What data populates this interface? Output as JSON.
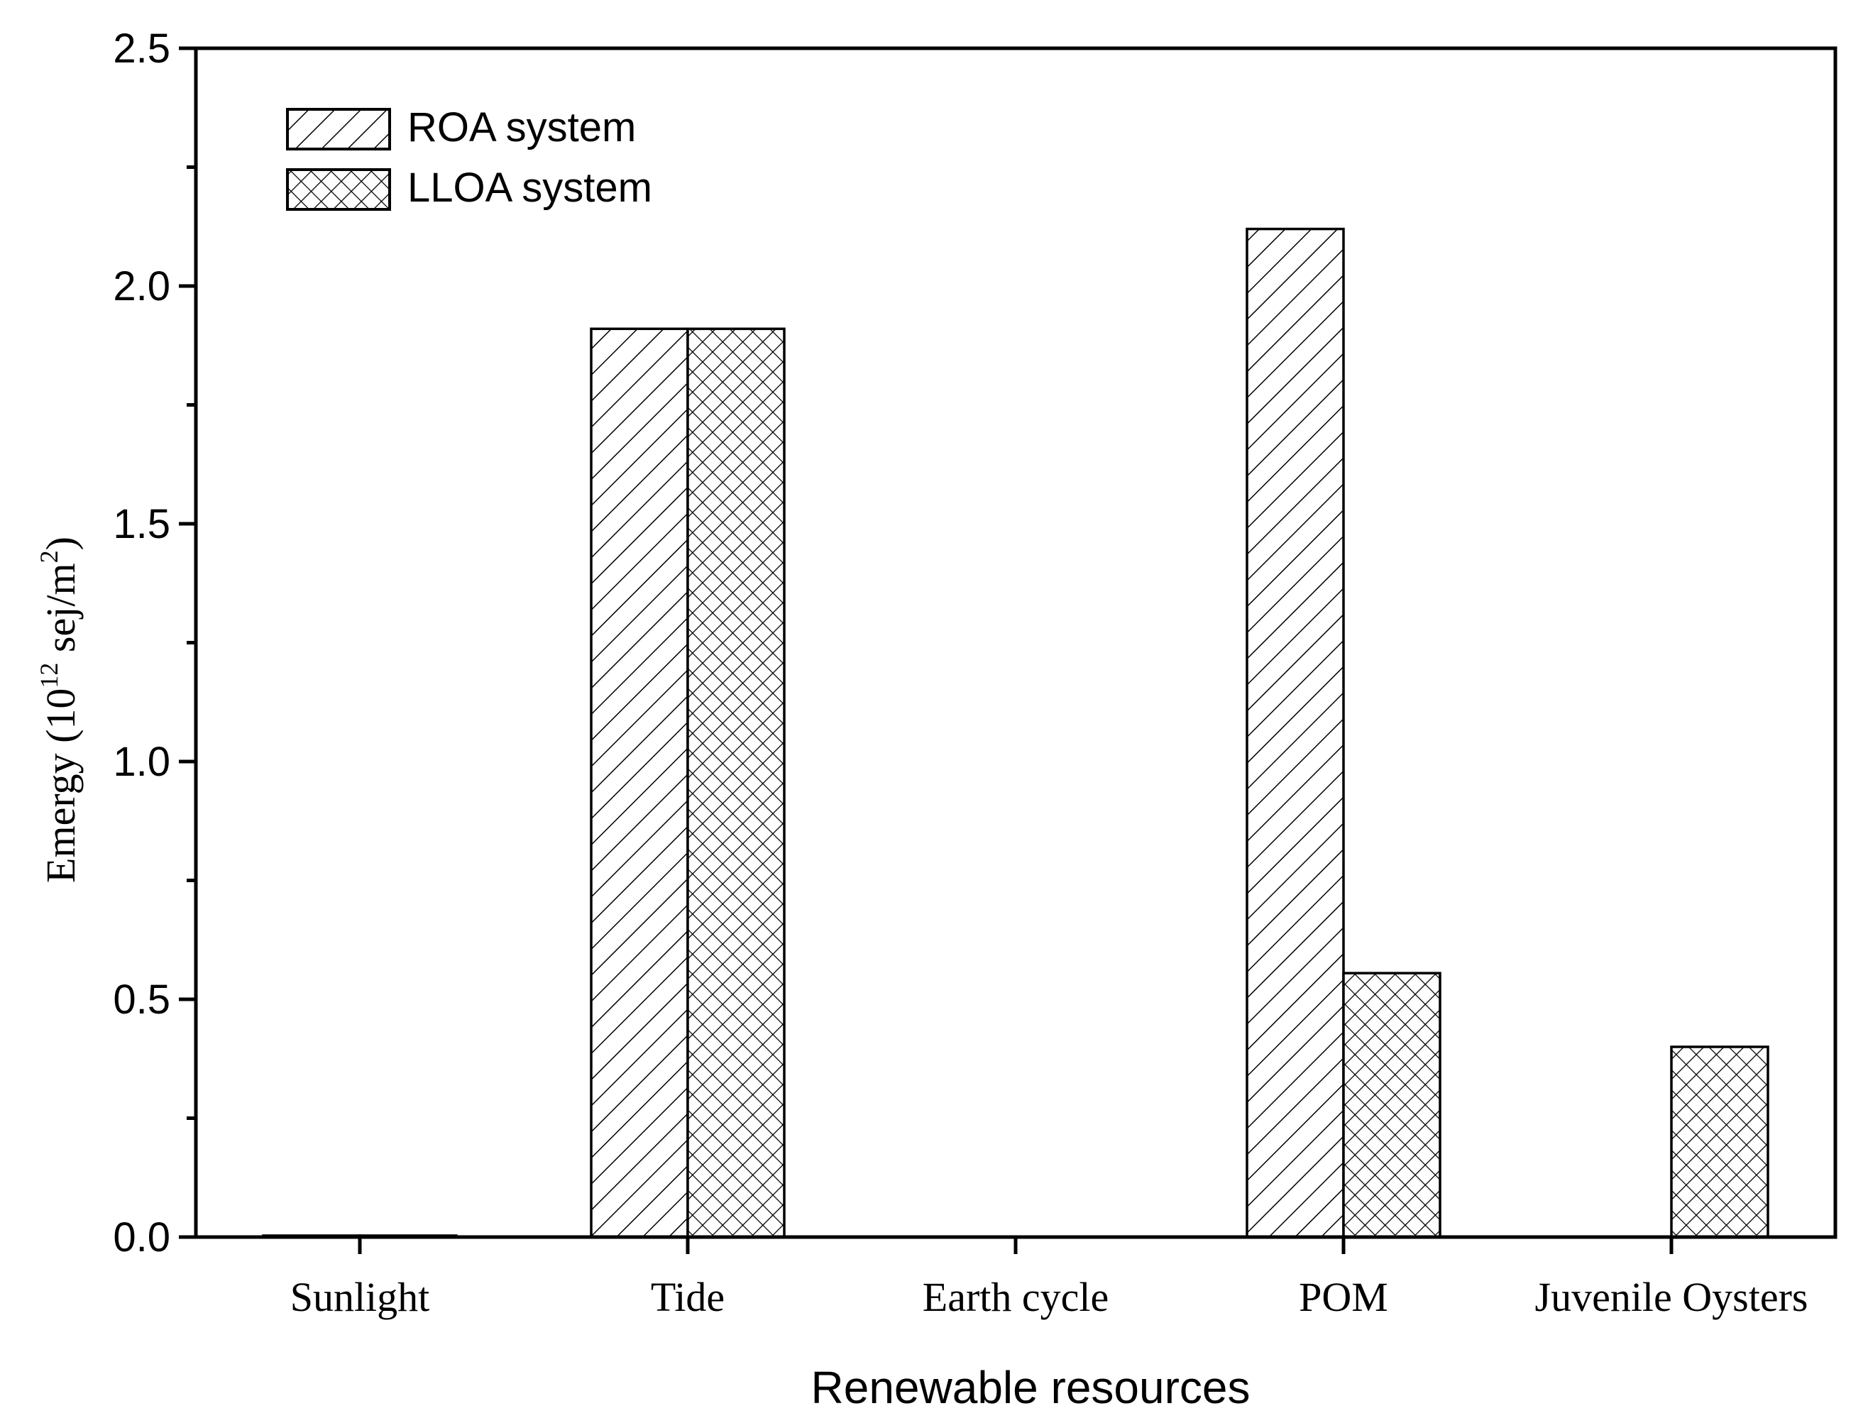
{
  "chart_data": {
    "type": "bar",
    "title": "",
    "xlabel": "Renewable resources",
    "ylabel": {
      "prefix": "Emergy (10",
      "exponent": "12",
      "middle": " sej/m",
      "exponent2": "2",
      "suffix": ")"
    },
    "categories": [
      "Sunlight",
      "Tide",
      "Earth cycle",
      "POM",
      "Juvenile Oysters"
    ],
    "series": [
      {
        "name": "ROA system",
        "pattern": "diagonal-hatch",
        "values": [
          0.003,
          1.91,
          0,
          2.12,
          0
        ]
      },
      {
        "name": "LLOA system",
        "pattern": "cross-hatch",
        "values": [
          0.003,
          1.91,
          0,
          0.555,
          0.4
        ]
      }
    ],
    "ylim": [
      0,
      2.5
    ],
    "yticks": [
      "0.0",
      "0.5",
      "1.0",
      "1.5",
      "2.0",
      "2.5"
    ],
    "ytick_values": [
      0,
      0.5,
      1.0,
      1.5,
      2.0,
      2.5
    ],
    "legend_position": "top-left",
    "grid": false,
    "colors": {
      "stroke": "#000000",
      "fill": "#ffffff"
    }
  }
}
